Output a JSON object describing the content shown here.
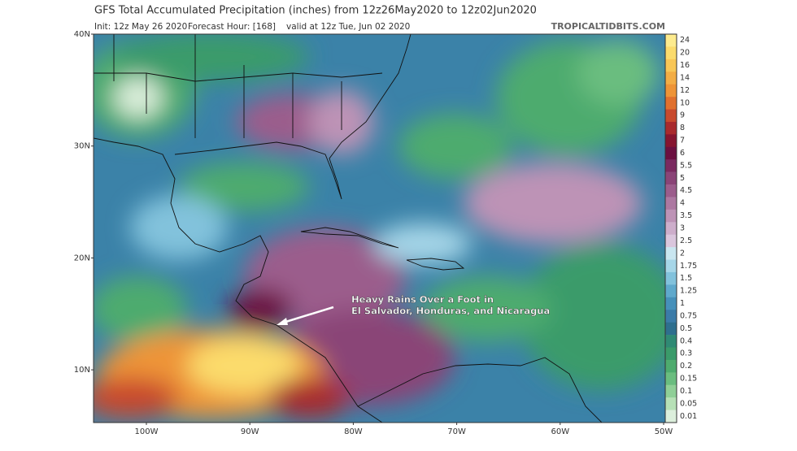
{
  "header": {
    "title": "GFS Total Accumulated Precipitation (inches) from 12z26May2020 to 12z02Jun2020",
    "init": "Init: 12z May 26 2020",
    "forecast_hour": "Forecast Hour: [168]",
    "valid": "valid at 12z Tue, Jun 02 2020",
    "source": "TROPICALTIDBITS.COM"
  },
  "map": {
    "lat_labels": [
      "40N",
      "30N",
      "20N",
      "10N"
    ],
    "lon_labels": [
      "100W",
      "90W",
      "80W",
      "70W",
      "60W",
      "50W"
    ],
    "annotation": [
      "Heavy Rains Over a Foot in",
      "El Salvador, Honduras, and Nicaragua"
    ]
  },
  "colorbar": [
    {
      "value": 24,
      "color": "#fdeb8e"
    },
    {
      "value": 20,
      "color": "#fbdb6c"
    },
    {
      "value": 16,
      "color": "#f8c656"
    },
    {
      "value": 14,
      "color": "#f3ad45"
    },
    {
      "value": 12,
      "color": "#ee9437"
    },
    {
      "value": 10,
      "color": "#e0702e"
    },
    {
      "value": 9,
      "color": "#c84a2e"
    },
    {
      "value": 8,
      "color": "#a92a2d"
    },
    {
      "value": 7,
      "color": "#861530"
    },
    {
      "value": 6,
      "color": "#6b1040"
    },
    {
      "value": 5.5,
      "color": "#7a2a60"
    },
    {
      "value": 5,
      "color": "#8a4477"
    },
    {
      "value": 4.5,
      "color": "#9b5d8c"
    },
    {
      "value": 4,
      "color": "#ac78a1"
    },
    {
      "value": 3.5,
      "color": "#bd93b6"
    },
    {
      "value": 3,
      "color": "#cdaecb"
    },
    {
      "value": 2.5,
      "color": "#dac6dd"
    },
    {
      "value": 2,
      "color": "#c9e6f0"
    },
    {
      "value": 1.75,
      "color": "#a6d6e8"
    },
    {
      "value": 1.5,
      "color": "#82c2dc"
    },
    {
      "value": 1.25,
      "color": "#5fa9cc"
    },
    {
      "value": 1,
      "color": "#4690ba"
    },
    {
      "value": 0.75,
      "color": "#3b7ba8"
    },
    {
      "value": 0.5,
      "color": "#2e6f8e"
    },
    {
      "value": 0.4,
      "color": "#2f8a74"
    },
    {
      "value": 0.3,
      "color": "#3a9b6a"
    },
    {
      "value": 0.2,
      "color": "#4eab6e"
    },
    {
      "value": 0.15,
      "color": "#6abd7f"
    },
    {
      "value": 0.1,
      "color": "#8fcf97"
    },
    {
      "value": 0.05,
      "color": "#b6e0b6"
    },
    {
      "value": 0.01,
      "color": "#dcefdc"
    }
  ]
}
